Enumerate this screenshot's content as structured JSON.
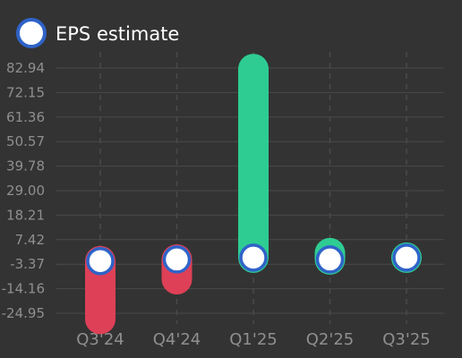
{
  "colors": {
    "background": "#333333",
    "grid": "#4a4a4a",
    "tick_text": "#8f8f8f",
    "legend_text": "#ffffff",
    "positive_bar": "#2ecc93",
    "negative_bar": "#de4057",
    "marker_fill": "#ffffff",
    "marker_stroke": "#2f63c8"
  },
  "chart_data": {
    "type": "bar",
    "legend": {
      "label": "EPS estimate",
      "position": "top-left"
    },
    "categories": [
      "Q3'24",
      "Q4'24",
      "Q1'25",
      "Q2'25",
      "Q3'25"
    ],
    "y_ticks": [
      "82.94",
      "72.15",
      "61.36",
      "50.57",
      "39.78",
      "29.00",
      "18.21",
      "7.42",
      "-3.37",
      "-14.16",
      "-24.95"
    ],
    "ylim": [
      -28.5,
      85.5
    ],
    "grid": true,
    "series": [
      {
        "name": "EPS estimate",
        "values": [
          -2.0,
          -1.3,
          -0.5,
          -1.3,
          -0.5
        ]
      }
    ],
    "actual": [
      -27.5,
      -10.0,
      82.5,
      1.5,
      -0.5
    ]
  }
}
